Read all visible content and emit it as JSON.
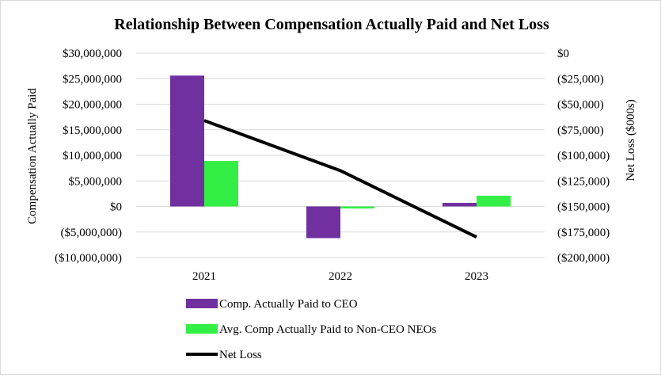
{
  "chart_data": {
    "type": "bar",
    "title": "Relationship Between Compensation Actually Paid and Net Loss",
    "categories": [
      "2021",
      "2022",
      "2023"
    ],
    "ylabel_left": "Compensation Actually Paid",
    "ylabel_right": "Net Loss ($000s)",
    "ylim_left": [
      -10000000,
      30000000
    ],
    "ylim_right": [
      -200000,
      0
    ],
    "yticks_left": [
      "$30,000,000",
      "$25,000,000",
      "$20,000,000",
      "$15,000,000",
      "$10,000,000",
      "$5,000,000",
      "$0",
      "($5,000,000)",
      "($10,000,000)"
    ],
    "yticks_right": [
      "$0",
      "($25,000)",
      "($50,000)",
      "($75,000)",
      "($100,000)",
      "($125,000)",
      "($150,000)",
      "($175,000)",
      "($200,000)"
    ],
    "grid": true,
    "legend_position": "bottom",
    "series": [
      {
        "name": "Comp. Actually Paid to CEO",
        "type": "bar",
        "axis": "left",
        "color": "#7030a0",
        "values": [
          25600000,
          -6200000,
          700000
        ]
      },
      {
        "name": "Avg. Comp Actually Paid to Non-CEO NEOs",
        "type": "bar",
        "axis": "left",
        "color": "#33ee44",
        "values": [
          8900000,
          -400000,
          2100000
        ]
      },
      {
        "name": "Net Loss",
        "type": "line",
        "axis": "right",
        "color": "#000000",
        "values": [
          -66000,
          -115000,
          -180000
        ]
      }
    ]
  }
}
